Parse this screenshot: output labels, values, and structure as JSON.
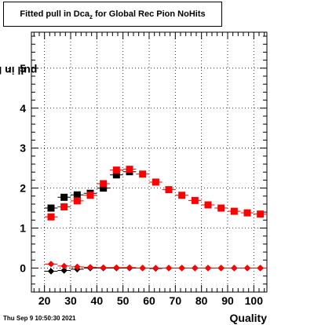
{
  "title": {
    "main": "Fitted pull in Dca",
    "sub": "z",
    "rest": " for Global Rec Pion NoHits"
  },
  "ylabel": {
    "main": "pull in Dca",
    "sub": "z"
  },
  "xlabel": "Quality",
  "timestamp": "Thu Sep  9 10:50:30 2021",
  "chart_data": {
    "type": "scatter",
    "xlim": [
      15,
      105
    ],
    "ylim": [
      -0.6,
      5.9
    ],
    "xticks": [
      20,
      30,
      40,
      50,
      60,
      70,
      80,
      90,
      100
    ],
    "yticks": [
      0,
      1,
      2,
      3,
      4,
      5
    ],
    "grid": true,
    "x": [
      22.5,
      27.5,
      32.5,
      37.5,
      42.5,
      47.5,
      52.5,
      57.5,
      62.5,
      67.5,
      72.5,
      77.5,
      82.5,
      87.5,
      92.5,
      97.5,
      102.5
    ],
    "series": [
      {
        "marker": "square",
        "color": "#000000",
        "values": [
          1.5,
          1.77,
          1.83,
          1.87,
          2.0,
          2.33,
          2.41,
          null,
          null,
          null,
          null,
          null,
          null,
          null,
          null,
          null,
          null
        ]
      },
      {
        "marker": "square",
        "color": "#ff0000",
        "values": [
          1.28,
          1.53,
          1.68,
          1.82,
          2.11,
          2.45,
          2.47,
          2.35,
          2.15,
          1.96,
          1.82,
          1.69,
          1.58,
          1.5,
          1.42,
          1.38,
          1.35
        ]
      },
      {
        "marker": "diamond",
        "color": "#000000",
        "values": [
          -0.08,
          -0.06,
          -0.03,
          0.0,
          0.0,
          0.0,
          0.0,
          0.0,
          -0.01,
          0.0,
          0.0,
          0.0,
          0.0,
          0.0,
          0.0,
          0.0,
          0.0
        ]
      },
      {
        "marker": "diamond",
        "color": "#ff0000",
        "values": [
          0.1,
          0.05,
          0.03,
          0.02,
          0.01,
          0.01,
          0.01,
          0.0,
          0.0,
          0.0,
          0.0,
          0.0,
          0.0,
          0.0,
          0.0,
          0.0,
          0.0
        ]
      }
    ]
  }
}
